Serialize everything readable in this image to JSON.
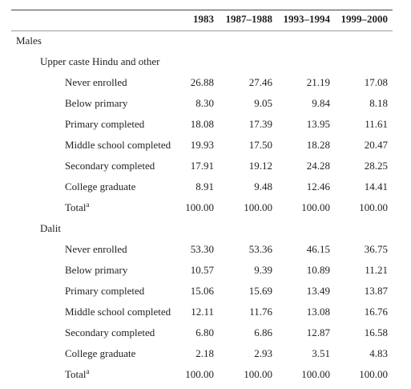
{
  "table": {
    "columns": [
      "1983",
      "1987–1988",
      "1993–1994",
      "1999–2000"
    ],
    "sections": [
      {
        "title": "Males",
        "groups": [
          {
            "title": "Upper caste Hindu and other",
            "rows": [
              {
                "label": "Never enrolled",
                "values": [
                  "26.88",
                  "27.46",
                  "21.19",
                  "17.08"
                ]
              },
              {
                "label": "Below primary",
                "values": [
                  "8.30",
                  "9.05",
                  "9.84",
                  "8.18"
                ]
              },
              {
                "label": "Primary completed",
                "values": [
                  "18.08",
                  "17.39",
                  "13.95",
                  "11.61"
                ]
              },
              {
                "label": "Middle school completed",
                "values": [
                  "19.93",
                  "17.50",
                  "18.28",
                  "20.47"
                ]
              },
              {
                "label": "Secondary completed",
                "values": [
                  "17.91",
                  "19.12",
                  "24.28",
                  "28.25"
                ]
              },
              {
                "label": "College graduate",
                "values": [
                  "8.91",
                  "9.48",
                  "12.46",
                  "14.41"
                ]
              },
              {
                "label": "Total",
                "note": "a",
                "values": [
                  "100.00",
                  "100.00",
                  "100.00",
                  "100.00"
                ]
              }
            ]
          },
          {
            "title": "Dalit",
            "rows": [
              {
                "label": "Never enrolled",
                "values": [
                  "53.30",
                  "53.36",
                  "46.15",
                  "36.75"
                ]
              },
              {
                "label": "Below primary",
                "values": [
                  "10.57",
                  "9.39",
                  "10.89",
                  "11.21"
                ]
              },
              {
                "label": "Primary completed",
                "values": [
                  "15.06",
                  "15.69",
                  "13.49",
                  "13.87"
                ]
              },
              {
                "label": "Middle school completed",
                "values": [
                  "12.11",
                  "11.76",
                  "13.08",
                  "16.76"
                ]
              },
              {
                "label": "Secondary completed",
                "values": [
                  "6.80",
                  "6.86",
                  "12.87",
                  "16.58"
                ]
              },
              {
                "label": "College graduate",
                "values": [
                  "2.18",
                  "2.93",
                  "3.51",
                  "4.83"
                ]
              },
              {
                "label": "Total",
                "note": "a",
                "values": [
                  "100.00",
                  "100.00",
                  "100.00",
                  "100.00"
                ]
              }
            ]
          }
        ]
      }
    ]
  }
}
